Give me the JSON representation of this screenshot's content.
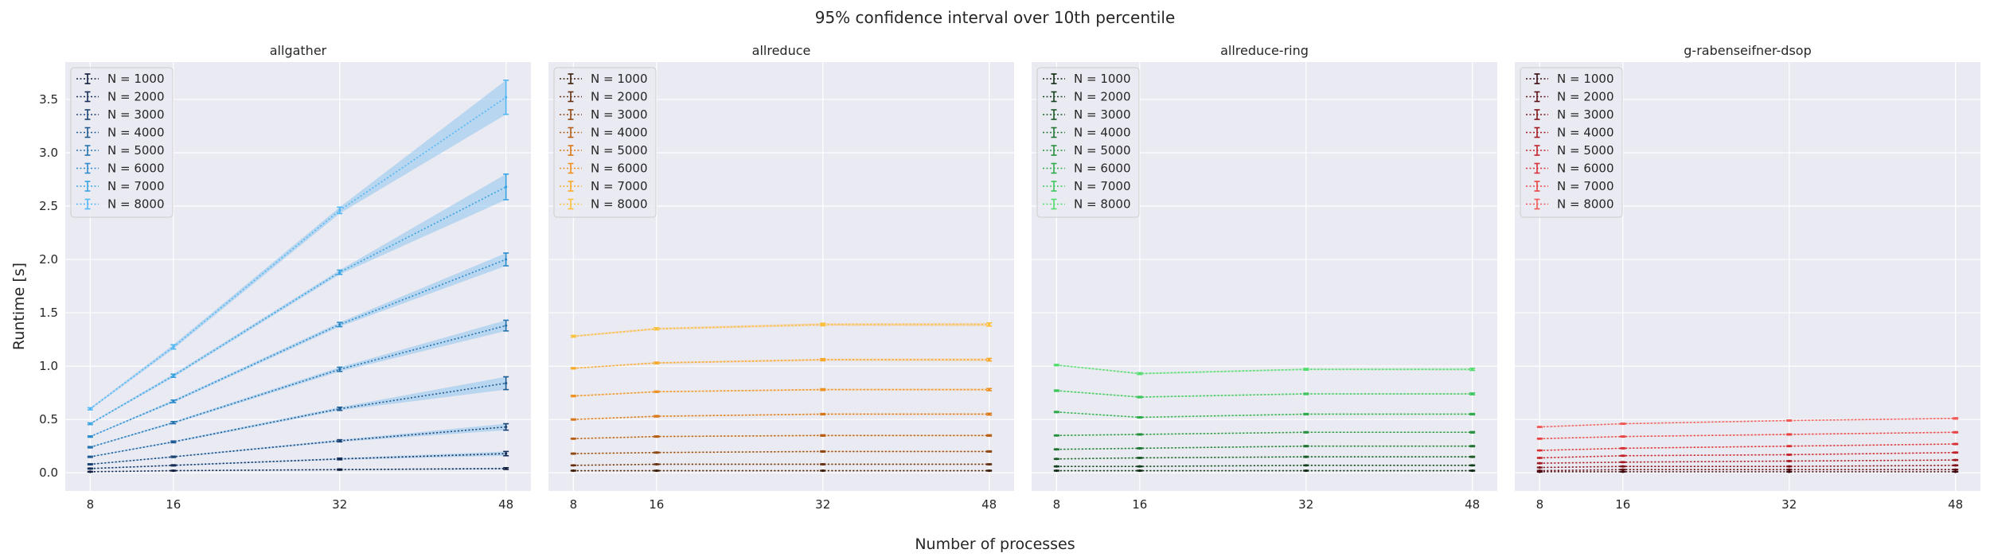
{
  "figure": {
    "title": "95% confidence interval over 10th percentile",
    "xlabel": "Number of processes",
    "ylabel": "Runtime [s]"
  },
  "legend_labels": [
    "N = 1000",
    "N = 2000",
    "N = 3000",
    "N = 4000",
    "N = 5000",
    "N = 6000",
    "N = 7000",
    "N = 8000"
  ],
  "chart_data": [
    {
      "type": "line",
      "title": "allgather",
      "x": [
        8,
        16,
        32,
        48
      ],
      "xticks": [
        "8",
        "16",
        "32",
        "48"
      ],
      "ylim": [
        -0.17,
        3.85
      ],
      "yticks": [
        "0.0",
        "0.5",
        "1.0",
        "1.5",
        "2.0",
        "2.5",
        "3.0",
        "3.5"
      ],
      "grid": true,
      "legend_position": "top-left",
      "colors": [
        "#0f1e3c",
        "#142e58",
        "#1a4373",
        "#1f5a91",
        "#2573ae",
        "#2d8ccb",
        "#3aa3e2",
        "#52b8f5"
      ],
      "band_color": "#8fc4ef",
      "series": [
        {
          "name": "N = 1000",
          "values": [
            0.01,
            0.02,
            0.03,
            0.04
          ],
          "err": [
            0.003,
            0.003,
            0.005,
            0.008
          ]
        },
        {
          "name": "N = 2000",
          "values": [
            0.04,
            0.07,
            0.13,
            0.18
          ],
          "err": [
            0.004,
            0.005,
            0.008,
            0.02
          ]
        },
        {
          "name": "N = 3000",
          "values": [
            0.08,
            0.15,
            0.3,
            0.43
          ],
          "err": [
            0.005,
            0.006,
            0.01,
            0.03
          ]
        },
        {
          "name": "N = 4000",
          "values": [
            0.15,
            0.29,
            0.6,
            0.84
          ],
          "err": [
            0.005,
            0.008,
            0.015,
            0.06
          ]
        },
        {
          "name": "N = 5000",
          "values": [
            0.24,
            0.47,
            0.97,
            1.38
          ],
          "err": [
            0.006,
            0.01,
            0.02,
            0.05
          ]
        },
        {
          "name": "N = 6000",
          "values": [
            0.34,
            0.67,
            1.39,
            2.0
          ],
          "err": [
            0.006,
            0.012,
            0.02,
            0.06
          ]
        },
        {
          "name": "N = 7000",
          "values": [
            0.46,
            0.91,
            1.88,
            2.68
          ],
          "err": [
            0.008,
            0.015,
            0.02,
            0.12
          ]
        },
        {
          "name": "N = 8000",
          "values": [
            0.6,
            1.18,
            2.46,
            3.52
          ],
          "err": [
            0.01,
            0.02,
            0.03,
            0.16
          ]
        }
      ]
    },
    {
      "type": "line",
      "title": "allreduce",
      "x": [
        8,
        16,
        32,
        48
      ],
      "xticks": [
        "8",
        "16",
        "32",
        "48"
      ],
      "ylim": [
        -0.17,
        3.85
      ],
      "yticks": [],
      "grid": true,
      "legend_position": "top-left",
      "colors": [
        "#3c1e08",
        "#663111",
        "#8f4812",
        "#b55e15",
        "#d87718",
        "#ee9121",
        "#f8a92c",
        "#fcc13a"
      ],
      "band_color": "#f5c78a",
      "series": [
        {
          "name": "N = 1000",
          "values": [
            0.02,
            0.02,
            0.02,
            0.02
          ],
          "err": [
            0.003,
            0.003,
            0.003,
            0.003
          ]
        },
        {
          "name": "N = 2000",
          "values": [
            0.07,
            0.08,
            0.08,
            0.08
          ],
          "err": [
            0.003,
            0.003,
            0.004,
            0.004
          ]
        },
        {
          "name": "N = 3000",
          "values": [
            0.18,
            0.19,
            0.2,
            0.2
          ],
          "err": [
            0.004,
            0.004,
            0.005,
            0.005
          ]
        },
        {
          "name": "N = 4000",
          "values": [
            0.32,
            0.34,
            0.35,
            0.35
          ],
          "err": [
            0.004,
            0.005,
            0.006,
            0.006
          ]
        },
        {
          "name": "N = 5000",
          "values": [
            0.5,
            0.53,
            0.55,
            0.55
          ],
          "err": [
            0.005,
            0.006,
            0.006,
            0.008
          ]
        },
        {
          "name": "N = 6000",
          "values": [
            0.72,
            0.76,
            0.78,
            0.78
          ],
          "err": [
            0.006,
            0.006,
            0.008,
            0.01
          ]
        },
        {
          "name": "N = 7000",
          "values": [
            0.98,
            1.03,
            1.06,
            1.06
          ],
          "err": [
            0.006,
            0.008,
            0.01,
            0.012
          ]
        },
        {
          "name": "N = 8000",
          "values": [
            1.28,
            1.35,
            1.39,
            1.39
          ],
          "err": [
            0.008,
            0.01,
            0.012,
            0.015
          ]
        }
      ]
    },
    {
      "type": "line",
      "title": "allreduce-ring",
      "x": [
        8,
        16,
        32,
        48
      ],
      "xticks": [
        "8",
        "16",
        "32",
        "48"
      ],
      "ylim": [
        -0.17,
        3.85
      ],
      "yticks": [],
      "grid": true,
      "legend_position": "top-left",
      "colors": [
        "#0e2812",
        "#14401c",
        "#1a5a26",
        "#207532",
        "#27903e",
        "#30ab4b",
        "#3cc65a",
        "#52dd6c"
      ],
      "band_color": "#9fe3ac",
      "series": [
        {
          "name": "N = 1000",
          "values": [
            0.02,
            0.02,
            0.02,
            0.02
          ],
          "err": [
            0.003,
            0.003,
            0.003,
            0.003
          ]
        },
        {
          "name": "N = 2000",
          "values": [
            0.06,
            0.06,
            0.07,
            0.07
          ],
          "err": [
            0.003,
            0.003,
            0.003,
            0.003
          ]
        },
        {
          "name": "N = 3000",
          "values": [
            0.13,
            0.14,
            0.15,
            0.15
          ],
          "err": [
            0.003,
            0.004,
            0.004,
            0.004
          ]
        },
        {
          "name": "N = 4000",
          "values": [
            0.22,
            0.23,
            0.25,
            0.25
          ],
          "err": [
            0.004,
            0.004,
            0.005,
            0.005
          ]
        },
        {
          "name": "N = 5000",
          "values": [
            0.35,
            0.36,
            0.38,
            0.38
          ],
          "err": [
            0.004,
            0.005,
            0.005,
            0.006
          ]
        },
        {
          "name": "N = 6000",
          "values": [
            0.57,
            0.52,
            0.55,
            0.55
          ],
          "err": [
            0.005,
            0.005,
            0.006,
            0.006
          ]
        },
        {
          "name": "N = 7000",
          "values": [
            0.77,
            0.71,
            0.74,
            0.74
          ],
          "err": [
            0.006,
            0.006,
            0.006,
            0.008
          ]
        },
        {
          "name": "N = 8000",
          "values": [
            1.01,
            0.93,
            0.97,
            0.97
          ],
          "err": [
            0.006,
            0.008,
            0.008,
            0.01
          ]
        }
      ]
    },
    {
      "type": "line",
      "title": "g-rabenseifner-dsop",
      "x": [
        8,
        16,
        32,
        48
      ],
      "xticks": [
        "8",
        "16",
        "32",
        "48"
      ],
      "ylim": [
        -0.17,
        3.85
      ],
      "yticks": [],
      "grid": true,
      "legend_position": "top-left",
      "colors": [
        "#3a0a0e",
        "#5c1016",
        "#80141c",
        "#a31a22",
        "#c2222a",
        "#d83034",
        "#e84444",
        "#f05a56"
      ],
      "band_color": "#f2a5a0",
      "series": [
        {
          "name": "N = 1000",
          "values": [
            0.01,
            0.01,
            0.01,
            0.01
          ],
          "err": [
            0.002,
            0.002,
            0.002,
            0.002
          ]
        },
        {
          "name": "N = 2000",
          "values": [
            0.02,
            0.03,
            0.03,
            0.03
          ],
          "err": [
            0.002,
            0.002,
            0.002,
            0.002
          ]
        },
        {
          "name": "N = 3000",
          "values": [
            0.05,
            0.06,
            0.06,
            0.07
          ],
          "err": [
            0.002,
            0.003,
            0.003,
            0.003
          ]
        },
        {
          "name": "N = 4000",
          "values": [
            0.09,
            0.1,
            0.11,
            0.12
          ],
          "err": [
            0.003,
            0.003,
            0.003,
            0.003
          ]
        },
        {
          "name": "N = 5000",
          "values": [
            0.14,
            0.16,
            0.17,
            0.19
          ],
          "err": [
            0.003,
            0.003,
            0.004,
            0.004
          ]
        },
        {
          "name": "N = 6000",
          "values": [
            0.21,
            0.23,
            0.25,
            0.27
          ],
          "err": [
            0.003,
            0.004,
            0.004,
            0.004
          ]
        },
        {
          "name": "N = 7000",
          "values": [
            0.32,
            0.34,
            0.36,
            0.38
          ],
          "err": [
            0.004,
            0.004,
            0.005,
            0.005
          ]
        },
        {
          "name": "N = 8000",
          "values": [
            0.43,
            0.46,
            0.49,
            0.51
          ],
          "err": [
            0.004,
            0.005,
            0.005,
            0.006
          ]
        }
      ]
    }
  ]
}
